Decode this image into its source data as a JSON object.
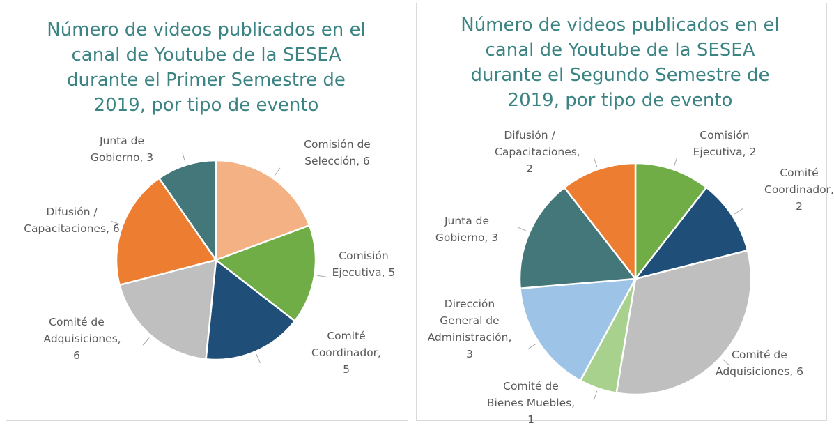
{
  "chart_data": [
    {
      "type": "pie",
      "title": "Número de videos publicados en el canal de Youtube de la SESEA durante el Primer Semestre de 2019, por tipo de evento",
      "labels": [
        "Comisión de Selección, 6",
        "Comisión Ejecutiva, 5",
        "Comité Coordinador, 5",
        "Comité de Adquisiciones, 6",
        "Difusión / Capacitaciones, 6",
        "Junta de Gobierno, 3"
      ],
      "values": [
        6,
        5,
        5,
        6,
        6,
        3
      ],
      "colors": [
        "#f4b183",
        "#70ad47",
        "#1f4e79",
        "#bfbfbf",
        "#ed7d31",
        "#44777a"
      ]
    },
    {
      "type": "pie",
      "title": "Número de videos publicados en el canal de Youtube de la SESEA durante el Segundo Semestre de 2019, por tipo de evento",
      "labels": [
        "Comisión Ejecutiva, 2",
        "Comité Coordinador, 2",
        "Comité de Adquisiciones, 6",
        "Comité de Bienes Muebles, 1",
        "Dirección General de Administración, 3",
        "Junta de Gobierno, 3",
        "Difusión / Capacitaciones, 2"
      ],
      "values": [
        2,
        2,
        6,
        1,
        3,
        3,
        2
      ],
      "colors": [
        "#70ad47",
        "#1f4e79",
        "#bfbfbf",
        "#a9d18e",
        "#9dc3e6",
        "#44777a",
        "#ed7d31"
      ]
    }
  ]
}
